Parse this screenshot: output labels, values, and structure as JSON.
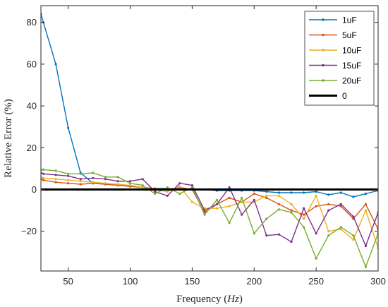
{
  "chart_data": {
    "type": "line",
    "title": "",
    "xlabel": "Frequency",
    "xlabel_unit": "Hz",
    "ylabel": "Relative Error (%)",
    "xlim": [
      28,
      300
    ],
    "ylim": [
      -39,
      88
    ],
    "xticks": [
      50,
      100,
      150,
      200,
      250,
      300
    ],
    "yticks": [
      -20,
      0,
      20,
      40,
      60,
      80
    ],
    "grid": false,
    "legend_position": "top-right",
    "x": [
      28,
      30,
      40,
      50,
      60,
      70,
      80,
      90,
      100,
      110,
      120,
      130,
      140,
      150,
      160,
      170,
      180,
      190,
      200,
      210,
      220,
      230,
      240,
      250,
      260,
      270,
      280,
      290,
      300
    ],
    "series": [
      {
        "name": "1uF",
        "color": "#0072BD",
        "values": [
          84,
          80,
          60,
          29.5,
          8,
          3,
          2.5,
          2,
          1.5,
          1,
          0.5,
          0.5,
          0,
          0,
          0,
          -0.5,
          -0.5,
          -0.5,
          -0.5,
          -1,
          -1.5,
          -1.5,
          -1.5,
          -1,
          -2.5,
          -1.5,
          -3.5,
          -2,
          -0.5
        ]
      },
      {
        "name": "5uF",
        "color": "#D95319",
        "values": [
          5,
          4.5,
          3.5,
          3,
          2.5,
          3,
          2.5,
          2,
          1.5,
          1,
          0.5,
          0,
          1,
          0,
          -11,
          -7,
          -4,
          -6,
          -2,
          -4,
          -7,
          -10,
          -12,
          -8,
          -7,
          -8,
          -14,
          -7,
          -19
        ]
      },
      {
        "name": "10uF",
        "color": "#EDB120",
        "values": [
          6,
          5.5,
          5,
          4.5,
          4,
          3.5,
          3,
          2.5,
          2,
          1,
          0,
          -1,
          1.5,
          -6,
          -9,
          -9,
          -8,
          -6,
          -6,
          -3,
          -3,
          -7,
          -14,
          -3,
          -20,
          -19,
          -24,
          -10,
          -28
        ]
      },
      {
        "name": "15uF",
        "color": "#7E2F8E",
        "values": [
          8,
          7.5,
          7,
          6.5,
          5,
          5.5,
          5,
          4,
          4,
          5,
          -1,
          -3,
          3,
          2,
          -10,
          -7,
          1,
          -12,
          -5,
          -22,
          -21.5,
          -25,
          -9,
          -21,
          -10,
          -7,
          -13,
          -27,
          -11
        ]
      },
      {
        "name": "20uF",
        "color": "#77AC30",
        "values": [
          9.5,
          9.5,
          9,
          7.5,
          7.5,
          8,
          6,
          6,
          3,
          2,
          -2,
          1,
          -2,
          1,
          -12,
          -5,
          -16,
          -4,
          -21,
          -14,
          -9.5,
          -11,
          -18,
          -33,
          -22,
          -18,
          -22,
          -37,
          -21
        ]
      },
      {
        "name": "0",
        "color": "#000000",
        "line_width": "thick",
        "values": [
          0,
          0,
          0,
          0,
          0,
          0,
          0,
          0,
          0,
          0,
          0,
          0,
          0,
          0,
          0,
          0,
          0,
          0,
          0,
          0,
          0,
          0,
          0,
          0,
          0,
          0,
          0,
          0,
          0
        ]
      }
    ]
  }
}
